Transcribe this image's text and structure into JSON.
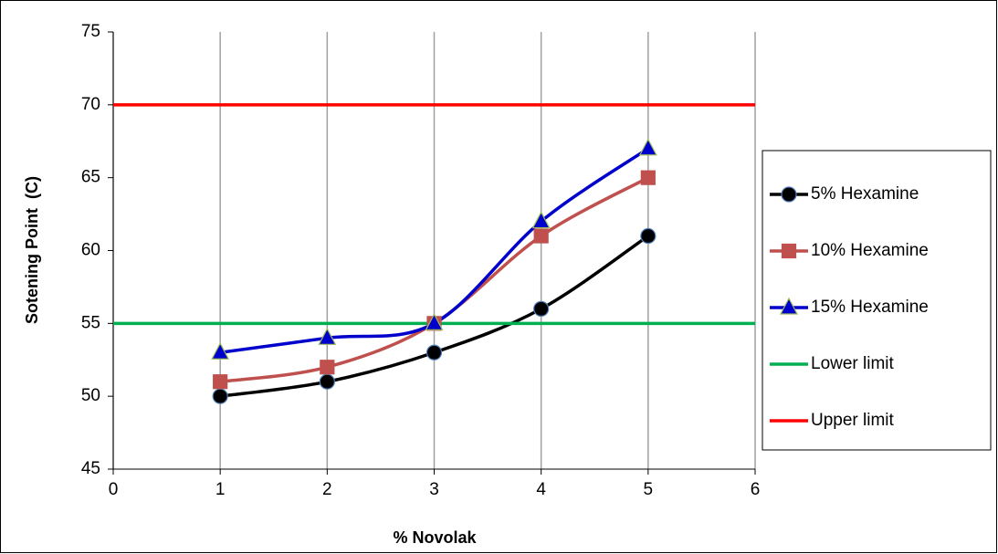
{
  "chart_data": {
    "type": "line",
    "x_label": "% Novolak",
    "y_label": "Sotening Point  (C)",
    "xlim": [
      0,
      6
    ],
    "xticks": [
      0,
      1,
      2,
      3,
      4,
      5,
      6
    ],
    "ylim": [
      45,
      75
    ],
    "yticks": [
      45,
      50,
      55,
      60,
      65,
      70,
      75
    ],
    "grid": "x",
    "legend": "right",
    "smooth": true,
    "series": [
      {
        "name": "5% Hexamine",
        "color": "#000000",
        "marker": "circle",
        "marker_color": "#000000",
        "marker_edge": "#4f81bd",
        "x": [
          1,
          2,
          3,
          4,
          5
        ],
        "values": [
          50,
          51,
          53,
          56,
          61
        ]
      },
      {
        "name": "10% Hexamine",
        "color": "#c0504d",
        "marker": "square",
        "marker_color": "#c0504d",
        "marker_edge": "#c0504d",
        "x": [
          1,
          2,
          3,
          4,
          5
        ],
        "values": [
          51,
          52,
          55,
          61,
          65
        ]
      },
      {
        "name": "15% Hexamine",
        "color": "#0000cc",
        "marker": "triangle",
        "marker_color": "#0000cc",
        "marker_edge": "#9bbb59",
        "x": [
          1,
          2,
          3,
          4,
          5
        ],
        "values": [
          53,
          54,
          55,
          62,
          67
        ]
      },
      {
        "name": "Lower limit",
        "color": "#00b050",
        "marker": "none",
        "x": [
          0,
          6
        ],
        "values": [
          55,
          55
        ]
      },
      {
        "name": "Upper limit",
        "color": "#ff0000",
        "marker": "none",
        "x": [
          0,
          6
        ],
        "values": [
          70,
          70
        ]
      }
    ]
  }
}
